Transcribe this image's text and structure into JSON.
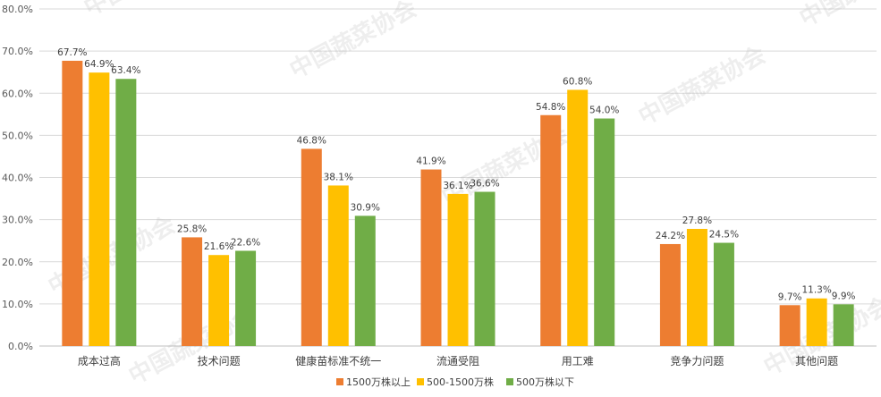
{
  "watermark": "中国蔬菜协会",
  "chart_data": {
    "type": "bar",
    "categories": [
      "成本过高",
      "技术问题",
      "健康苗标准不统一",
      "流通受阻",
      "用工难",
      "竞争力问题",
      "其他问题"
    ],
    "series": [
      {
        "name": "1500万株以上",
        "color": "#ED7D31",
        "values": [
          67.7,
          25.8,
          46.8,
          41.9,
          54.8,
          24.2,
          9.7
        ]
      },
      {
        "name": "500-1500万株",
        "color": "#FFC000",
        "values": [
          64.9,
          21.6,
          38.1,
          36.1,
          60.8,
          27.8,
          11.3
        ]
      },
      {
        "name": "500万株以下",
        "color": "#70AD47",
        "values": [
          63.4,
          22.6,
          30.9,
          36.6,
          54.0,
          24.5,
          9.9
        ]
      }
    ],
    "ylim": [
      0,
      80
    ],
    "yticks": [
      "0.0%",
      "10.0%",
      "20.0%",
      "30.0%",
      "40.0%",
      "50.0%",
      "60.0%",
      "70.0%",
      "80.0%"
    ],
    "ytick_values": [
      0,
      10,
      20,
      30,
      40,
      50,
      60,
      70,
      80
    ],
    "grid": true,
    "legend_position": "bottom",
    "value_format": "percent-1-decimal",
    "colors": {
      "grid": "#D9D9D9",
      "axis": "#BFBFBF"
    }
  }
}
